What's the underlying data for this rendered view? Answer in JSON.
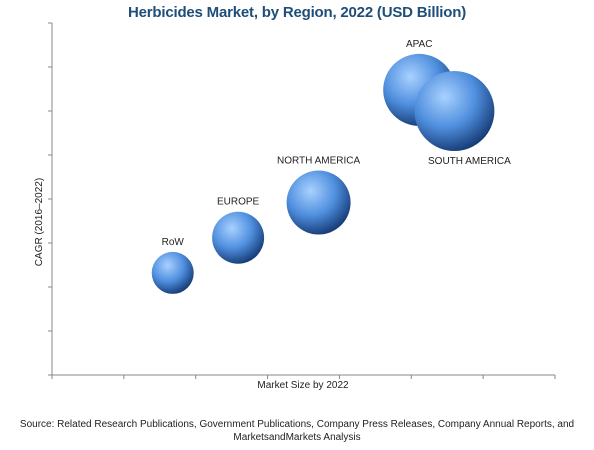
{
  "chart_data": {
    "type": "scatter",
    "title": "Herbicides Market, by Region, 2022 (USD Billion)",
    "xlabel": "Market Size by 2022",
    "ylabel": "CAGR (2016–2022)",
    "xlim": [
      0,
      100
    ],
    "ylim": [
      0,
      100
    ],
    "grid": false,
    "points": [
      {
        "label": "RoW",
        "x": 24,
        "y": 29,
        "size": 21
      },
      {
        "label": "EUROPE",
        "x": 37,
        "y": 39,
        "size": 26
      },
      {
        "label": "NORTH AMERICA",
        "x": 53,
        "y": 49,
        "size": 32
      },
      {
        "label": "APAC",
        "x": 73,
        "y": 81,
        "size": 36
      },
      {
        "label": "SOUTH AMERICA",
        "x": 80,
        "y": 75,
        "size": 40
      }
    ]
  },
  "source": "Source: Related Research Publications, Government Publications, Company Press Releases, Company Annual Reports, and MarketsandMarkets Analysis",
  "colors": {
    "bubble_light": "#a9d1ff",
    "bubble_mid": "#4f8fde",
    "bubble_dark": "#173d78",
    "title": "#1f4e79"
  }
}
